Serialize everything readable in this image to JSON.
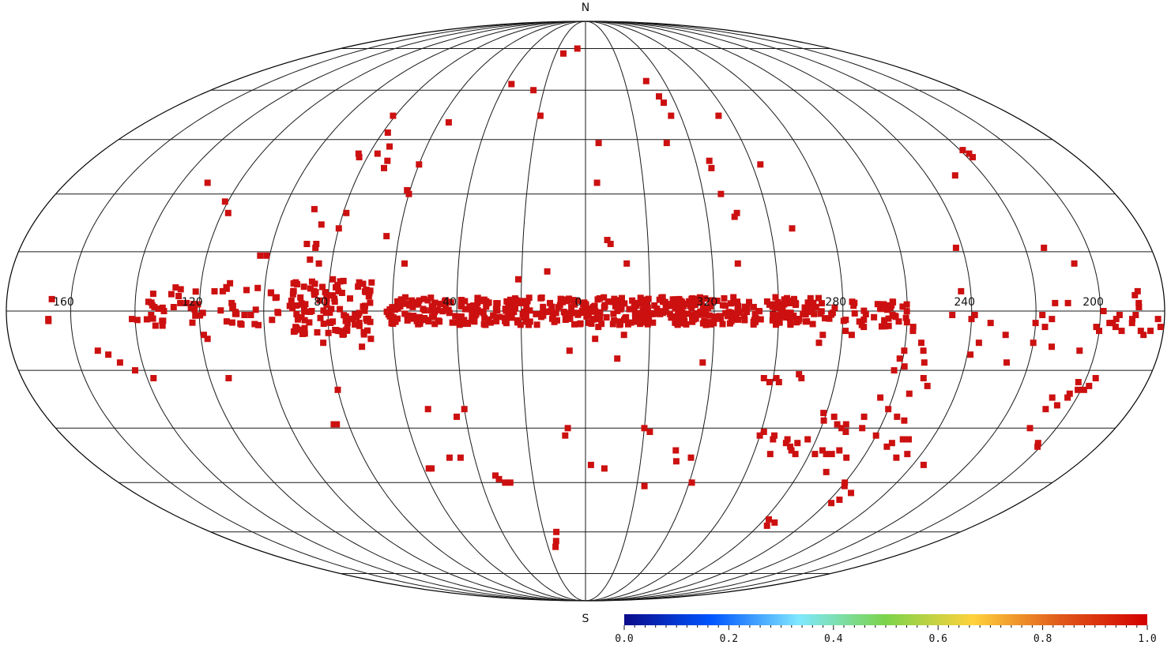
{
  "map": {
    "projection": "mollweide",
    "coordinate_system": "galactic",
    "center_longitude_deg": 0,
    "longitude_increases": "leftward",
    "graticule_longitude_step_deg": 20,
    "graticule_latitude_step_deg": 15,
    "outline_color": "#000000",
    "grid_color": "#1a1a1a",
    "pole_labels": {
      "north": "N",
      "south": "S"
    },
    "longitude_labels": [
      {
        "text": "160",
        "lon": 160
      },
      {
        "text": "120",
        "lon": 120
      },
      {
        "text": "80",
        "lon": 80
      },
      {
        "text": "40",
        "lon": 40
      },
      {
        "text": "0",
        "lon": 0
      },
      {
        "text": "320",
        "lon": 320
      },
      {
        "text": "280",
        "lon": 280
      },
      {
        "text": "240",
        "lon": 240
      },
      {
        "text": "200",
        "lon": 200
      }
    ]
  },
  "sources": {
    "marker_color": "#cc1010",
    "value": 1.0,
    "plane_regions": [
      {
        "lon_from": 62,
        "lon_to": -74,
        "lat_min": -3.5,
        "lat_max": 3.5,
        "count": 520
      },
      {
        "lon_from": 92,
        "lon_to": 66,
        "lat_min": -6,
        "lat_max": 8,
        "count": 110
      },
      {
        "lon_from": 140,
        "lon_to": 95,
        "lat_min": -4,
        "lat_max": 6,
        "count": 50
      },
      {
        "lon_from": -74,
        "lon_to": -100,
        "lat_min": -4,
        "lat_max": 3,
        "count": 45
      }
    ],
    "points": [
      [
        166,
        3
      ],
      [
        167,
        -2
      ],
      [
        167,
        -2.5
      ],
      [
        153,
        -10
      ],
      [
        150,
        -11
      ],
      [
        147,
        -13
      ],
      [
        143,
        -15
      ],
      [
        138,
        -17
      ],
      [
        135,
        -1
      ],
      [
        134,
        1
      ],
      [
        141,
        -2
      ],
      [
        131,
        0
      ],
      [
        128,
        1
      ],
      [
        126,
        2
      ],
      [
        124,
        2
      ],
      [
        119,
        -6
      ],
      [
        118,
        -7
      ],
      [
        113,
        5
      ],
      [
        112,
        6
      ],
      [
        110,
        2
      ],
      [
        114,
        -17
      ],
      [
        131,
        33
      ],
      [
        121,
        28
      ],
      [
        118,
        25
      ],
      [
        106,
        -1
      ],
      [
        104,
        -1
      ],
      [
        85,
        -29
      ],
      [
        84,
        -29
      ],
      [
        82,
        -8
      ],
      [
        80,
        -20
      ],
      [
        77,
        -5
      ],
      [
        70,
        -9
      ],
      [
        67,
        -7
      ],
      [
        58,
        -41
      ],
      [
        57,
        -41
      ],
      [
        52,
        -25
      ],
      [
        49,
        -38
      ],
      [
        45,
        -38
      ],
      [
        43,
        -27
      ],
      [
        40,
        -25
      ],
      [
        34,
        -43
      ],
      [
        33,
        -44
      ],
      [
        31,
        -45
      ],
      [
        29,
        -45
      ],
      [
        84,
        12
      ],
      [
        87,
        13
      ],
      [
        86,
        17
      ],
      [
        89,
        17
      ],
      [
        90,
        26
      ],
      [
        86,
        22
      ],
      [
        80,
        21
      ],
      [
        79,
        25
      ],
      [
        77,
        41
      ],
      [
        72,
        37
      ],
      [
        72,
        39
      ],
      [
        56,
        50
      ],
      [
        83,
        40
      ],
      [
        84,
        41
      ],
      [
        81,
        52
      ],
      [
        78,
        47
      ],
      [
        74,
        43
      ],
      [
        60,
        38
      ],
      [
        61,
        31
      ],
      [
        60,
        30
      ],
      [
        57,
        12
      ],
      [
        64,
        19
      ],
      [
        86,
        16
      ],
      [
        77,
        5
      ],
      [
        103,
        14
      ],
      [
        101,
        14
      ],
      [
        111,
        7
      ],
      [
        79,
        8
      ],
      [
        74,
        -3
      ],
      [
        37,
        62
      ],
      [
        25,
        60
      ],
      [
        19,
        52
      ],
      [
        15,
        73
      ],
      [
        6,
        75
      ],
      [
        21,
        8
      ],
      [
        12,
        10
      ],
      [
        5,
        -10
      ],
      [
        6,
        -30
      ],
      [
        7,
        -32
      ],
      [
        -2,
        -40
      ],
      [
        15,
        -63
      ],
      [
        16,
        -65
      ],
      [
        14,
        -60
      ],
      [
        -3,
        -7
      ],
      [
        -10,
        -12
      ],
      [
        -5,
        44
      ],
      [
        -4,
        33
      ],
      [
        -8,
        17
      ],
      [
        -7,
        18
      ],
      [
        -13,
        12
      ],
      [
        -3,
        -2
      ],
      [
        -4,
        -4
      ],
      [
        -12,
        -6
      ],
      [
        -7,
        -41
      ],
      [
        -23,
        -46
      ],
      [
        -22,
        -31
      ],
      [
        -20,
        -30
      ],
      [
        -33,
        -39
      ],
      [
        -38,
        -38
      ],
      [
        -32,
        -36
      ],
      [
        -41,
        -45
      ],
      [
        -31,
        63
      ],
      [
        -35,
        56
      ],
      [
        -34,
        58
      ],
      [
        -36,
        52
      ],
      [
        -31,
        44
      ],
      [
        -45,
        37
      ],
      [
        -45,
        39
      ],
      [
        -46,
        30
      ],
      [
        -49,
        24
      ],
      [
        -50,
        25
      ],
      [
        -48,
        12
      ],
      [
        -37,
        -13
      ],
      [
        -56,
        52
      ],
      [
        -63,
        38
      ],
      [
        -67,
        21
      ],
      [
        -61,
        -17
      ],
      [
        -57,
        -17
      ],
      [
        -59,
        -18
      ],
      [
        -62,
        -18
      ],
      [
        -68,
        -16
      ],
      [
        -69,
        -17
      ],
      [
        -73,
        -8
      ],
      [
        -74,
        -6
      ],
      [
        -81,
        -5
      ],
      [
        -83,
        -6
      ],
      [
        -60,
        -32
      ],
      [
        -61,
        -31
      ],
      [
        -65,
        -32
      ],
      [
        -70,
        -33
      ],
      [
        -70,
        -34
      ],
      [
        -72,
        -35
      ],
      [
        -73,
        -36
      ],
      [
        -74,
        -34
      ],
      [
        -77,
        -33
      ],
      [
        -75,
        -37
      ],
      [
        -79,
        -26
      ],
      [
        -80,
        -28
      ],
      [
        -83,
        -27
      ],
      [
        -85,
        -29
      ],
      [
        -87,
        -30
      ],
      [
        -88,
        -29
      ],
      [
        -89,
        -31
      ],
      [
        -93,
        -27
      ],
      [
        -94,
        -30
      ],
      [
        -96,
        -22
      ],
      [
        -100,
        -25
      ],
      [
        -105,
        -21
      ],
      [
        -107,
        -34
      ],
      [
        -110,
        -33
      ],
      [
        -112,
        -33
      ],
      [
        -106,
        -35
      ],
      [
        -100,
        -32
      ],
      [
        -94,
        -38
      ],
      [
        -90,
        -36
      ],
      [
        -65,
        -33
      ],
      [
        -66,
        -37
      ],
      [
        -82,
        -37
      ],
      [
        -84,
        -36
      ],
      [
        -86,
        -37
      ],
      [
        -88,
        -37
      ],
      [
        -90,
        -42
      ],
      [
        -100,
        -45
      ],
      [
        -101,
        -46
      ],
      [
        -86,
        -57
      ],
      [
        -84,
        -58
      ],
      [
        -82,
        -56
      ],
      [
        -104,
        -50
      ],
      [
        -102,
        -51
      ],
      [
        -106,
        -48
      ],
      [
        -115,
        -37
      ],
      [
        -112,
        -38
      ],
      [
        -124,
        -40
      ],
      [
        -102,
        -5
      ],
      [
        -105,
        -8
      ],
      [
        -106,
        -10
      ],
      [
        -100,
        -10
      ],
      [
        -99,
        -12
      ],
      [
        -101,
        -14
      ],
      [
        -98,
        -15
      ],
      [
        -107,
        -13
      ],
      [
        -108,
        -17
      ],
      [
        -110,
        -19
      ],
      [
        -107,
        -28
      ],
      [
        -104,
        -27
      ],
      [
        -102,
        -4
      ],
      [
        -120,
        -2
      ],
      [
        -121,
        -1
      ],
      [
        -131,
        -6
      ],
      [
        -126,
        -3
      ],
      [
        -123,
        -8
      ],
      [
        -121,
        -11
      ],
      [
        -117,
        5
      ],
      [
        -114,
        -1
      ],
      [
        -118,
        16
      ],
      [
        -140,
        -3
      ],
      [
        -142,
        -1
      ],
      [
        -146,
        2
      ],
      [
        -146,
        -9
      ],
      [
        -143,
        -4
      ],
      [
        -140,
        -8
      ],
      [
        -133,
        -13
      ],
      [
        -145,
        -2
      ],
      [
        -130,
        35
      ],
      [
        -142,
        40
      ],
      [
        -141,
        42
      ],
      [
        -142,
        41
      ],
      [
        -154,
        12
      ],
      [
        -146,
        16
      ],
      [
        -150,
        2
      ],
      [
        -155,
        -10
      ],
      [
        -152,
        -22
      ],
      [
        -152,
        -25
      ],
      [
        -157,
        -21
      ],
      [
        -157,
        -22
      ],
      [
        -155,
        -24
      ],
      [
        -158,
        -18
      ],
      [
        -151,
        -30
      ],
      [
        -159,
        -35
      ],
      [
        -158,
        -34
      ],
      [
        -161,
        -20
      ],
      [
        -159,
        -20
      ],
      [
        -163,
        -17
      ],
      [
        -162,
        -19
      ],
      [
        -160,
        -5
      ],
      [
        -163,
        -3
      ],
      [
        -165,
        -2
      ],
      [
        -166,
        -1
      ],
      [
        -165,
        -4
      ],
      [
        -167,
        -5
      ],
      [
        -170,
        -3
      ],
      [
        -171,
        -1
      ],
      [
        -172,
        2
      ],
      [
        -171,
        4
      ],
      [
        -172,
        5
      ],
      [
        -173,
        -5
      ],
      [
        -174,
        -6
      ],
      [
        -176,
        -5
      ],
      [
        -170,
        -2
      ],
      [
        -172,
        1
      ],
      [
        -178,
        -2
      ],
      [
        -179,
        -4
      ],
      [
        -164,
        -3
      ],
      [
        -159,
        -4
      ],
      [
        -161,
        0
      ]
    ]
  },
  "colorbar": {
    "min": 0.0,
    "max": 1.0,
    "colors": [
      "#0b0b8a",
      "#0055ff",
      "#7fe8ff",
      "#7bd34a",
      "#ffd23c",
      "#e05a1a",
      "#d40000"
    ],
    "tick_labels": [
      "0.0",
      "0.2",
      "0.4",
      "0.6",
      "0.8",
      "1.0"
    ]
  }
}
